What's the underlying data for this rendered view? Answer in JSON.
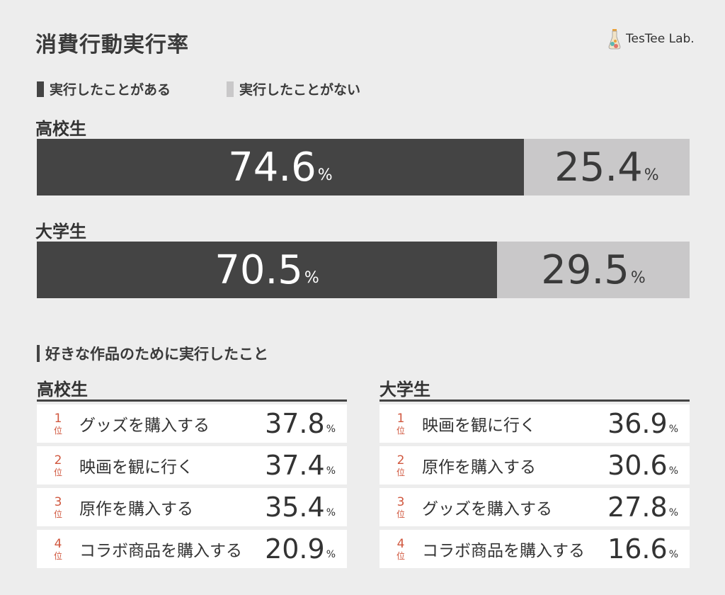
{
  "title": "消費行動実行率",
  "logo": {
    "text": "TesTee Lab."
  },
  "legend": [
    {
      "label": "実行したことがある",
      "color": "#444444"
    },
    {
      "label": "実行したことがない",
      "color": "#c9c8c9"
    }
  ],
  "chart_data": [
    {
      "type": "bar",
      "orientation": "horizontal-stacked",
      "categories": [
        "高校生",
        "大学生"
      ],
      "series": [
        {
          "name": "実行したことがある",
          "values": [
            74.6,
            70.5
          ]
        },
        {
          "name": "実行したことがない",
          "values": [
            25.4,
            29.5
          ]
        }
      ],
      "unit": "%"
    },
    {
      "type": "table",
      "title": "好きな作品のために実行したこと",
      "groups": [
        {
          "name": "高校生",
          "rows": [
            {
              "rank": "1",
              "label": "グッズを購入する",
              "value": "37.8"
            },
            {
              "rank": "2",
              "label": "映画を観に行く",
              "value": "37.4"
            },
            {
              "rank": "3",
              "label": "原作を購入する",
              "value": "35.4"
            },
            {
              "rank": "4",
              "label": "コラボ商品を購入する",
              "value": "20.9"
            }
          ]
        },
        {
          "name": "大学生",
          "rows": [
            {
              "rank": "1",
              "label": "映画を観に行く",
              "value": "36.9"
            },
            {
              "rank": "2",
              "label": "原作を購入する",
              "value": "30.6"
            },
            {
              "rank": "3",
              "label": "グッズを購入する",
              "value": "27.8"
            },
            {
              "rank": "4",
              "label": "コラボ商品を購入する",
              "value": "16.6"
            }
          ]
        }
      ],
      "unit": "%",
      "rank_suffix": "位"
    }
  ],
  "percent_sign": "%",
  "colors": {
    "accent": "#d0573e",
    "dark": "#444444",
    "light": "#c9c8c9",
    "background": "#ededed"
  }
}
